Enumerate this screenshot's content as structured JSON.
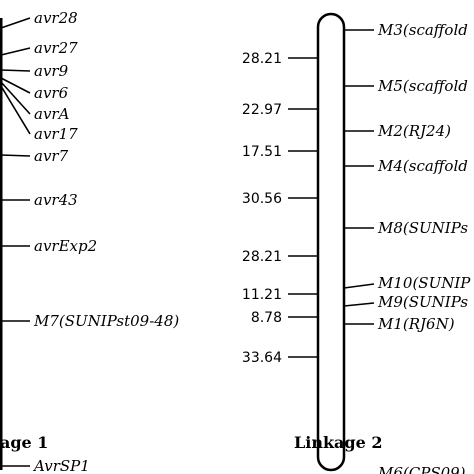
{
  "linkage1": {
    "title": "age 1",
    "markers": [
      "avr28",
      "avr27",
      "avr9",
      "avr6",
      "avrA",
      "avr17",
      "avr7",
      "avr43",
      "avrExp2",
      "M7(SUNIPst09-48)",
      "AvrSP1"
    ]
  },
  "linkage2": {
    "title": "Linkage 2",
    "markers": [
      "M3(scaffold",
      "M5(scaffold",
      "M2(RJ24)",
      "M4(scaffold",
      "M8(SUNIPs",
      "M10(SUNIP",
      "M9(SUNIPs",
      "M1(RJ6N)",
      "M6(CPS09)"
    ],
    "distances": [
      "28.21",
      "22.97",
      "17.51",
      "30.56",
      "28.21",
      "11.21",
      "8.78",
      "33.64"
    ]
  }
}
